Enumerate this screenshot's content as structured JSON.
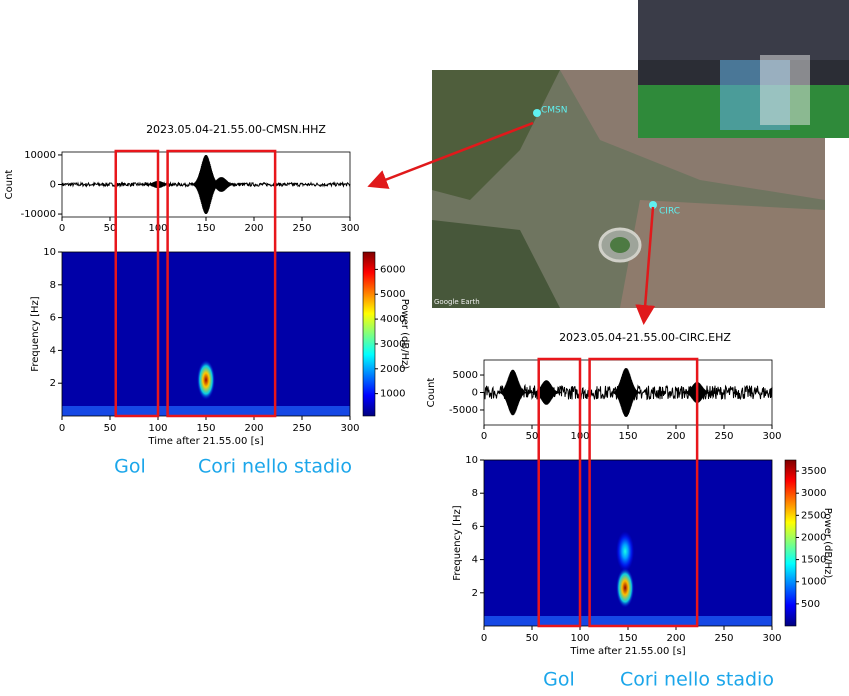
{
  "map": {
    "markers": [
      {
        "label": "CMSN"
      },
      {
        "label": "CIRC"
      }
    ],
    "attribution": "Google Earth"
  },
  "panels": [
    {
      "title": "2023.05.04-21.55.00-CMSN.HHZ",
      "waveform": {
        "ylabel": "Count",
        "xlim": [
          0,
          300
        ],
        "xticks": [
          0,
          50,
          100,
          150,
          200,
          250,
          300
        ],
        "ylim": [
          -11000,
          11000
        ],
        "yticks": [
          10000,
          0,
          -10000
        ],
        "noise": 600,
        "events": [
          {
            "t": 100,
            "amp": 1200
          },
          {
            "t": 150,
            "amp": 10000
          },
          {
            "t": 166,
            "amp": 2500
          }
        ]
      },
      "spectrogram": {
        "ylabel": "Frequency [Hz]",
        "xlabel": "Time after 21.55.00 [s]",
        "xlim": [
          0,
          300
        ],
        "xticks": [
          0,
          50,
          100,
          150,
          200,
          250,
          300
        ],
        "ylim": [
          0,
          10
        ],
        "yticks": [
          2,
          4,
          6,
          8,
          10
        ],
        "colorbar": {
          "label": "Power (dB/Hz)",
          "clim": [
            100,
            6700
          ],
          "ticks": [
            1000,
            2000,
            3000,
            4000,
            5000,
            6000
          ]
        },
        "hotspots": [
          {
            "t": 150,
            "f": 2.2,
            "power": 6500
          }
        ]
      },
      "boxes": [
        {
          "t0": 56,
          "t1": 100,
          "label": "Gol"
        },
        {
          "t0": 110,
          "t1": 222,
          "label": "Cori nello stadio"
        }
      ]
    },
    {
      "title": "2023.05.04-21.55.00-CIRC.EHZ",
      "waveform": {
        "ylabel": "Count",
        "xlim": [
          0,
          300
        ],
        "xticks": [
          0,
          50,
          100,
          150,
          200,
          250,
          300
        ],
        "ylim": [
          -9300,
          9300
        ],
        "yticks": [
          5000,
          0,
          -5000
        ],
        "noise": 2000,
        "events": [
          {
            "t": 30,
            "amp": 6500
          },
          {
            "t": 65,
            "amp": 3500
          },
          {
            "t": 148,
            "amp": 7000
          },
          {
            "t": 222,
            "amp": 3000
          }
        ]
      },
      "spectrogram": {
        "ylabel": "Frequency [Hz]",
        "xlabel": "Time after 21.55.00 [s]",
        "xlim": [
          0,
          300
        ],
        "xticks": [
          0,
          50,
          100,
          150,
          200,
          250,
          300
        ],
        "ylim": [
          0,
          10
        ],
        "yticks": [
          2,
          4,
          6,
          8,
          10
        ],
        "colorbar": {
          "label": "Power (dB/Hz)",
          "clim": [
            0,
            3750
          ],
          "ticks": [
            500,
            1000,
            1500,
            2000,
            2500,
            3000,
            3500
          ]
        },
        "hotspots": [
          {
            "t": 147,
            "f": 4.5,
            "power": 1500
          },
          {
            "t": 147,
            "f": 2.3,
            "power": 3700
          }
        ]
      },
      "boxes": [
        {
          "t0": 57,
          "t1": 100,
          "label": "Gol"
        },
        {
          "t0": 110,
          "t1": 222,
          "label": "Cori nello stadio"
        }
      ]
    }
  ]
}
